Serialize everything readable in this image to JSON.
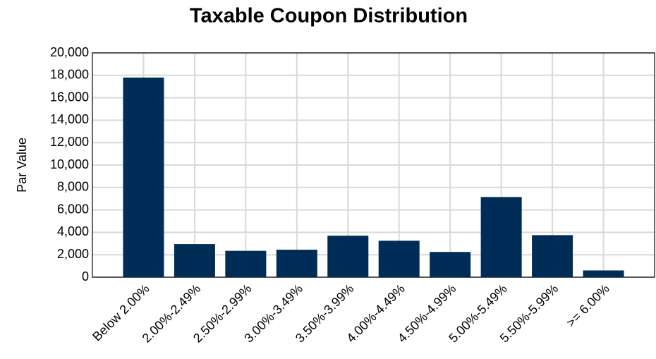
{
  "chart_data": {
    "type": "bar",
    "title": "Taxable Coupon Distribution",
    "y_label": "Par Value",
    "categories": [
      "Below 2.00%",
      "2.00%-2.49%",
      "2.50%-2.99%",
      "3.00%-3.49%",
      "3.50%-3.99%",
      "4.00%-4.49%",
      "4.50%-4.99%",
      "5.00%-5.49%",
      "5.50%-5.99%",
      ">= 6.00%"
    ],
    "values": [
      17800,
      2950,
      2350,
      2450,
      3700,
      3250,
      2250,
      7150,
      3750,
      600
    ],
    "color": "#002d57",
    "ylim": [
      0,
      20000
    ],
    "yticks": [
      0,
      {
        "value": 2000,
        "label": "2,000"
      },
      {
        "value": 4000,
        "label": "4,000"
      },
      {
        "value": 6000,
        "label": "6,000"
      },
      {
        "value": 8000,
        "label": "8,000"
      },
      {
        "value": 10000,
        "label": "10,000"
      },
      {
        "value": 12000,
        "label": "12,000"
      },
      {
        "value": 14000,
        "label": "14,000"
      },
      {
        "value": 16000,
        "label": "16,000"
      },
      {
        "value": 18000,
        "label": "18,000"
      },
      {
        "value": 20000,
        "label": "20,000"
      }
    ],
    "grid": true
  }
}
